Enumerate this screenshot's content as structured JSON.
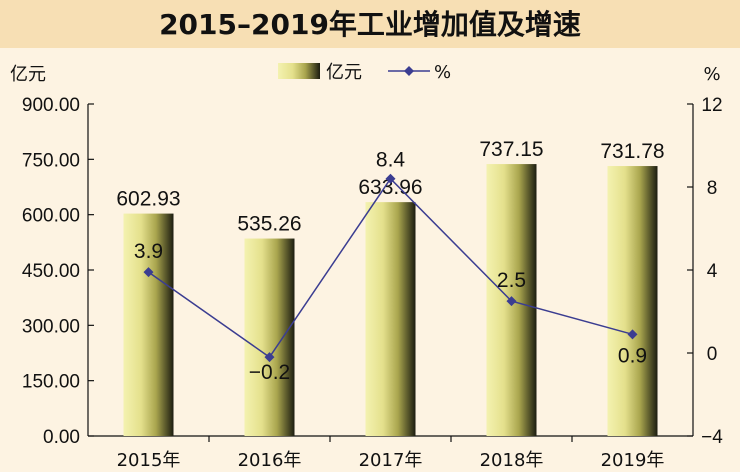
{
  "chart_data": {
    "type": "bar",
    "title": "2015–2019年工业增加值及增速",
    "categories": [
      "2015年",
      "2016年",
      "2017年",
      "2018年",
      "2019年"
    ],
    "series": [
      {
        "name": "亿元",
        "type": "bar",
        "axis": "left",
        "values": [
          602.93,
          535.26,
          633.96,
          737.15,
          731.78
        ],
        "value_labels": [
          "602.93",
          "535.26",
          "633.96",
          "737.15",
          "731.78"
        ]
      },
      {
        "name": "%",
        "type": "line",
        "axis": "right",
        "values": [
          3.9,
          -0.2,
          8.4,
          2.5,
          0.9
        ],
        "value_labels": [
          "3.9",
          "−0.2",
          "8.4",
          "2.5",
          "0.9"
        ]
      }
    ],
    "y_left": {
      "unit": "亿元",
      "range": [
        0,
        900
      ],
      "ticks": [
        0,
        150,
        300,
        450,
        600,
        750,
        900
      ],
      "tick_labels": [
        "0.00",
        "150.00",
        "300.00",
        "450.00",
        "600.00",
        "750.00",
        "900.00"
      ]
    },
    "y_right": {
      "unit": "%",
      "range": [
        -4,
        12
      ],
      "ticks": [
        -4,
        0,
        4,
        8,
        12
      ],
      "tick_labels": [
        "−4",
        "0",
        "4",
        "8",
        "12"
      ]
    },
    "legend_position": "top-center",
    "grid": false,
    "colors": {
      "bar_light": "#f4f2b0",
      "bar_mid": "#c8c468",
      "bar_dark": "#1c1c10",
      "line": "#3b3d91",
      "background": "#fdf3e2",
      "title_band": "#f7dfb4"
    }
  }
}
